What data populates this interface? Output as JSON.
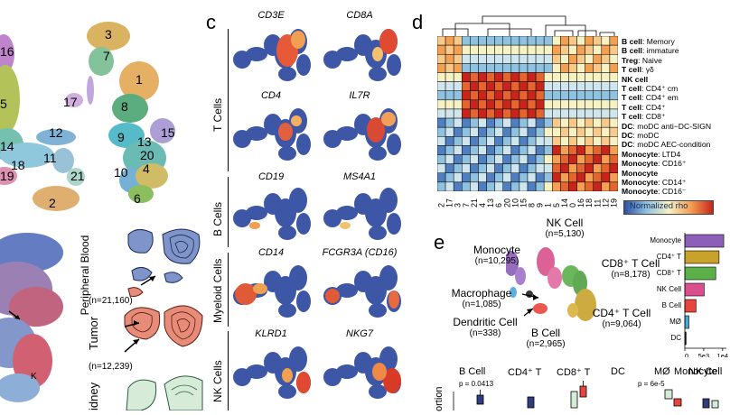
{
  "panel_c": {
    "label": "c",
    "groups": [
      {
        "name": "T Cells",
        "genes": [
          "CD3E",
          "CD8A",
          "CD4",
          "IL7R"
        ]
      },
      {
        "name": "B Cells",
        "genes": [
          "CD19",
          "MS4A1"
        ]
      },
      {
        "name": "Myeloid Cells",
        "genes": [
          "CD14",
          "FCGR3A (CD16)"
        ]
      },
      {
        "name": "NK Cells",
        "genes": [
          "KLRD1",
          "NKG7"
        ]
      }
    ]
  },
  "panel_d": {
    "label": "d",
    "legend_label": "Normalized rho",
    "rows": [
      {
        "bold": "B cell",
        "rest": ": Memory"
      },
      {
        "bold": "B cell",
        "rest": ": immature"
      },
      {
        "bold": "Treg",
        "rest": ": Naive"
      },
      {
        "bold": "T cell",
        "rest": ": γδ"
      },
      {
        "bold": "NK cell",
        "rest": ""
      },
      {
        "bold": "T cell",
        "rest": ": CD4⁺ cm"
      },
      {
        "bold": "T cell",
        "rest": ": CD4⁺ em"
      },
      {
        "bold": "T cell",
        "rest": ": CD4⁺"
      },
      {
        "bold": "T cell",
        "rest": ": CD8⁺"
      },
      {
        "bold": "DC",
        "rest": ": moDC anti−DC-SIGN"
      },
      {
        "bold": "DC",
        "rest": ": moDC"
      },
      {
        "bold": "DC",
        "rest": ": moDC AEC-condition"
      },
      {
        "bold": "Monocyte",
        "rest": ": LTD4"
      },
      {
        "bold": "Monocyte",
        "rest": ": CD16⁺"
      },
      {
        "bold": "Monocyte",
        "rest": ""
      },
      {
        "bold": "Monocyte",
        "rest": ": CD14⁺"
      },
      {
        "bold": "Monocyte",
        "rest": ": CD16⁻"
      }
    ],
    "col_labels": [
      "2",
      "17",
      "3",
      "7",
      "21",
      "4",
      "13",
      "6",
      "20",
      "10",
      "15",
      "8",
      "9",
      "1",
      "5",
      "14",
      "0",
      "16",
      "18",
      "11",
      "12",
      "19"
    ]
  },
  "panel_a": {
    "cluster_labels": [
      "16",
      "3",
      "7",
      "1",
      "5",
      "17",
      "8",
      "12",
      "9",
      "13",
      "15",
      "14",
      "20",
      "4",
      "18",
      "19",
      "11",
      "21",
      "10",
      "2",
      "6"
    ]
  },
  "panel_b": {
    "tissues": [
      {
        "name": "Peripheral Blood",
        "n": "(n=21,160)"
      },
      {
        "name": "Tumor",
        "n": "(n=12,239)"
      },
      {
        "name": "idney",
        "n": ""
      }
    ],
    "arrow_label": "K"
  },
  "panel_e": {
    "label": "e",
    "cells": [
      {
        "name": "Monocyte",
        "n": "(n=10,295)"
      },
      {
        "name": "NK Cell",
        "n": "(n=5,130)"
      },
      {
        "name": "CD8⁺ T Cell",
        "n": "(n=8,178)"
      },
      {
        "name": "Macrophage",
        "n": "(n=1,085)"
      },
      {
        "name": "Dendritic Cell",
        "n": "(n=338)"
      },
      {
        "name": "B Cell",
        "n": "(n=2,965)"
      },
      {
        "name": "CD4⁺ T Cell",
        "n": "(n=9,064)"
      }
    ]
  },
  "chart_data": {
    "type": "bar",
    "categories": [
      "Monocyte",
      "CD4⁺ T",
      "CD8⁺ T",
      "NK Cell",
      "B Cell",
      "MØ",
      "DC"
    ],
    "values": [
      10295,
      9064,
      8178,
      5130,
      2965,
      1085,
      338
    ],
    "xlim": [
      0,
      11000
    ],
    "x_ticks": [
      "0",
      "5e3",
      "1e4"
    ],
    "colors": [
      "#8c5fb8",
      "#c9a22c",
      "#5bb04a",
      "#d9508c",
      "#e8463c",
      "#4aa7d8",
      "#222222"
    ]
  },
  "panel_f": {
    "groups": [
      "B Cell",
      "CD4⁺ T",
      "CD8⁺ T",
      "DC",
      "MØ",
      "Monocyte",
      "NK Cell"
    ],
    "pvals": [
      {
        "group": "B Cell",
        "text": "p = 0.0413"
      },
      {
        "group": "MØ",
        "text": "p = 6e-5"
      }
    ],
    "ylabel_fragment": "ortion"
  }
}
